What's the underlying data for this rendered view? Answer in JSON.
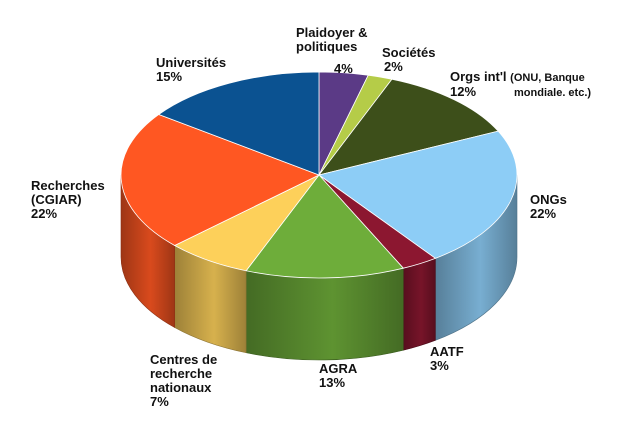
{
  "chart_data": {
    "type": "pie",
    "style": "3d",
    "title": "",
    "slices": [
      {
        "label": "Plaidoyer &",
        "label2": "politiques",
        "value": 4,
        "display": "4%",
        "color": "#5b3a86"
      },
      {
        "label": "Sociétés",
        "value": 2,
        "display": "2%",
        "color": "#b5cc48"
      },
      {
        "label": "Orgs int'l",
        "label_extra": "(ONU, Banque",
        "label_extra2": "mondiale. etc.)",
        "value": 12,
        "display": "12%",
        "color": "#3d4f1a"
      },
      {
        "label": "ONGs",
        "value": 22,
        "display": "22%",
        "color": "#8dcdf6"
      },
      {
        "label": "AATF",
        "value": 3,
        "display": "3%",
        "color": "#8c1730"
      },
      {
        "label": "AGRA",
        "value": 13,
        "display": "13%",
        "color": "#6ead3a"
      },
      {
        "label": "Centres de",
        "label2": "recherche",
        "label3": "nationaux",
        "value": 7,
        "display": "7%",
        "color": "#fdd05a"
      },
      {
        "label": "Recherches",
        "label2": "(CGIAR)",
        "value": 22,
        "display": "22%",
        "color": "#ff5722"
      },
      {
        "label": "Universités",
        "value": 15,
        "display": "15%",
        "color": "#0b5291"
      }
    ],
    "legend": "none"
  }
}
